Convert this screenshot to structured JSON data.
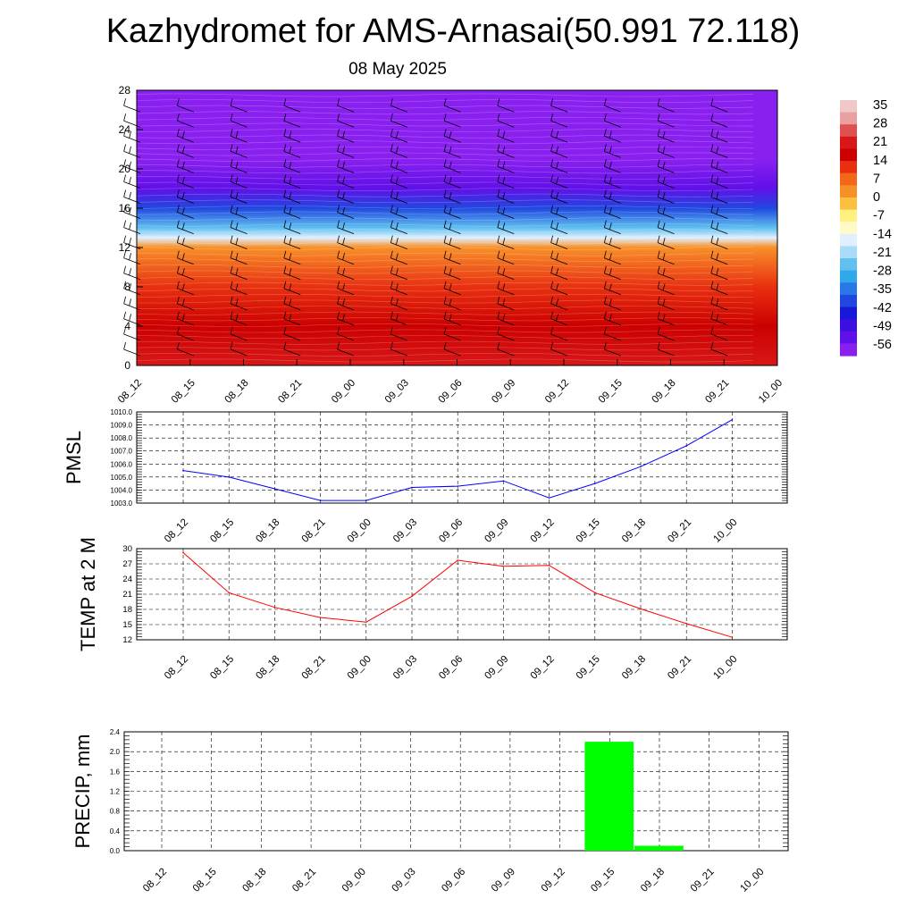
{
  "title": "Kazhydromet for AMS-Arnasai(50.991 72.118)",
  "subtitle": "08 May 2025",
  "time_labels": [
    "08_12",
    "08_15",
    "08_18",
    "08_21",
    "09_00",
    "09_03",
    "09_06",
    "09_09",
    "09_12",
    "09_15",
    "09_18",
    "09_21",
    "10_00"
  ],
  "colorbar": {
    "labels": [
      "35",
      "28",
      "21",
      "14",
      "7",
      "0",
      "-7",
      "-14",
      "-21",
      "-28",
      "-35",
      "-42",
      "-49",
      "-56"
    ],
    "colors": [
      "#f0c8c8",
      "#e8a0a0",
      "#e05050",
      "#d81818",
      "#cc0000",
      "#e83010",
      "#f26818",
      "#f89028",
      "#fcc040",
      "#fff080",
      "#fffac8",
      "#e0f0ff",
      "#a8dcf8",
      "#60c0f0",
      "#30a8ec",
      "#2878e8",
      "#2048e0",
      "#1818d8",
      "#3c10e0",
      "#6010e8",
      "#8a20f0"
    ]
  },
  "chart_data": [
    {
      "type": "heatmap",
      "title": "",
      "xlabel": "",
      "ylabel": "",
      "x": [
        "08_12",
        "08_15",
        "08_18",
        "08_21",
        "09_00",
        "09_03",
        "09_06",
        "09_09",
        "09_12",
        "09_15",
        "09_18",
        "09_21",
        "10_00"
      ],
      "ylim": [
        0,
        28
      ],
      "yticks": [
        0,
        4,
        8,
        12,
        16,
        20,
        24,
        28
      ],
      "z_range": [
        -56,
        35
      ],
      "temperature_profile_by_height": [
        {
          "y": 0,
          "value": 23
        },
        {
          "y": 4,
          "value": 18
        },
        {
          "y": 8,
          "value": 14
        },
        {
          "y": 12,
          "value": 5
        },
        {
          "y": 13,
          "value": -14
        },
        {
          "y": 14,
          "value": -25
        },
        {
          "y": 16,
          "value": -38
        },
        {
          "y": 18,
          "value": -50
        },
        {
          "y": 21,
          "value": -56
        },
        {
          "y": 25,
          "value": -54
        },
        {
          "y": 28,
          "value": -60
        }
      ],
      "overlay": "wind barbs"
    },
    {
      "type": "line",
      "ylabel": "PMSL",
      "categories": [
        "08_12",
        "08_15",
        "08_18",
        "08_21",
        "09_00",
        "09_03",
        "09_06",
        "09_09",
        "09_12",
        "09_15",
        "09_18",
        "09_21",
        "10_00"
      ],
      "series": [
        {
          "values": [
            1005.5,
            1005.0,
            1004.1,
            1003.2,
            1003.2,
            1004.2,
            1004.3,
            1004.7,
            1003.4,
            1004.5,
            1005.8,
            1007.4,
            1009.4
          ],
          "color": "#0000ff"
        }
      ],
      "ylim": [
        1003.0,
        1010.0
      ],
      "yticks": [
        "1003.0",
        "1004.0",
        "1005.0",
        "1006.0",
        "1007.0",
        "1008.0",
        "1009.0",
        "1010.0"
      ],
      "grid": true
    },
    {
      "type": "line",
      "ylabel": "TEMP at 2 M",
      "categories": [
        "08_12",
        "08_15",
        "08_18",
        "08_21",
        "09_00",
        "09_03",
        "09_06",
        "09_09",
        "09_12",
        "09_15",
        "09_18",
        "09_21",
        "10_00"
      ],
      "series": [
        {
          "values": [
            29.2,
            21.3,
            18.4,
            16.4,
            15.5,
            20.6,
            27.7,
            26.5,
            26.7,
            21.3,
            18.1,
            15.2,
            12.5
          ],
          "color": "#ff0000"
        }
      ],
      "ylim": [
        12,
        30
      ],
      "yticks": [
        "12",
        "15",
        "18",
        "21",
        "24",
        "27",
        "30"
      ],
      "grid": true
    },
    {
      "type": "bar",
      "ylabel": "PRECIP, mm",
      "categories": [
        "08_12",
        "08_15",
        "08_18",
        "08_21",
        "09_00",
        "09_03",
        "09_06",
        "09_09",
        "09_12",
        "09_15",
        "09_18",
        "09_21",
        "10_00"
      ],
      "values": [
        0,
        0,
        0,
        0,
        0,
        0,
        0,
        0,
        0,
        2.2,
        0.1,
        0,
        0
      ],
      "color": "#00ff00",
      "ylim": [
        0,
        2.4
      ],
      "yticks": [
        "0.0",
        "0.4",
        "0.8",
        "1.2",
        "1.6",
        "2.0",
        "2.4"
      ],
      "grid": true
    }
  ]
}
